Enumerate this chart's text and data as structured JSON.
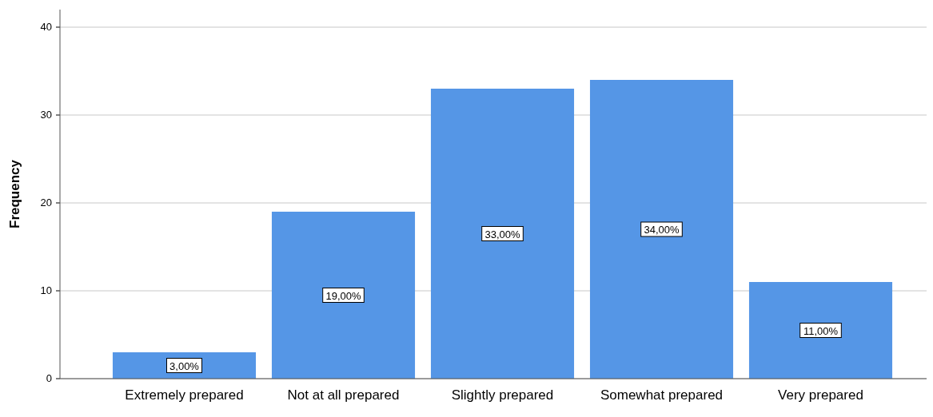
{
  "chart_data": {
    "type": "bar",
    "ylabel": "Frequency",
    "categories": [
      "Extremely prepared",
      "Not at all prepared",
      "Slightly prepared",
      "Somewhat prepared",
      "Very prepared"
    ],
    "values": [
      3,
      19,
      33,
      34,
      11
    ],
    "value_labels": [
      "3,00%",
      "19,00%",
      "33,00%",
      "34,00%",
      "11,00%"
    ],
    "color": "#5596e6",
    "ylim": [
      0,
      42
    ],
    "yticks": [
      0,
      10,
      20,
      30,
      40
    ],
    "grid": "y"
  }
}
